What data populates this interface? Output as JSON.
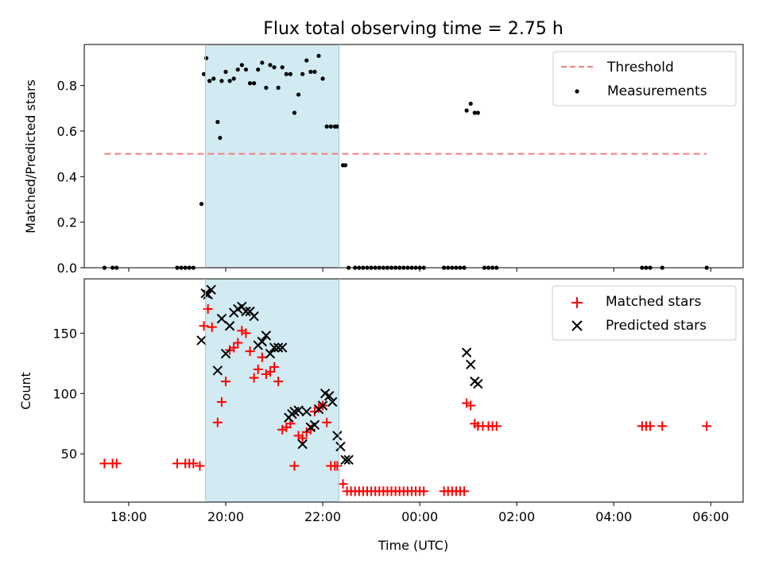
{
  "chart_data": [
    {
      "type": "scatter",
      "title": "Flux total observing time = 2.75 h",
      "ylabel": "Matched/Predicted stars",
      "xlabel": "",
      "xlim": [
        "17:05",
        "06:40"
      ],
      "ylim": [
        0,
        0.98
      ],
      "yticks": [
        "0.0",
        "0.2",
        "0.4",
        "0.6",
        "0.8"
      ],
      "xticks": [
        "18:00",
        "20:00",
        "22:00",
        "00:00",
        "02:00",
        "04:00",
        "06:00"
      ],
      "shaded_span": {
        "from": "19:35",
        "to": "22:20",
        "color": "#add8e6"
      },
      "grid": false,
      "legend_position": "upper right",
      "colors": {
        "threshold": "#f08080",
        "measurements": "#000000",
        "span": "#add8e6"
      },
      "series": [
        {
          "name": "Threshold",
          "style": "dashed-line",
          "x": [
            "17:30",
            "05:55"
          ],
          "y": [
            0.5,
            0.5
          ]
        },
        {
          "name": "Measurements",
          "style": "dots",
          "x": [
            "17:30",
            "17:40",
            "17:45",
            "19:00",
            "19:05",
            "19:10",
            "19:15",
            "19:20",
            "19:30",
            "19:33",
            "19:36",
            "19:40",
            "19:45",
            "19:50",
            "19:53",
            "19:55",
            "20:00",
            "20:05",
            "20:10",
            "20:15",
            "20:20",
            "20:25",
            "20:30",
            "20:35",
            "20:40",
            "20:45",
            "20:50",
            "20:55",
            "21:00",
            "21:05",
            "21:10",
            "21:15",
            "21:20",
            "21:25",
            "21:30",
            "21:35",
            "21:40",
            "21:45",
            "21:50",
            "21:55",
            "22:00",
            "22:05",
            "22:10",
            "22:15",
            "22:18",
            "22:25",
            "22:28",
            "22:32",
            "22:40",
            "22:45",
            "22:50",
            "22:55",
            "23:00",
            "23:05",
            "23:10",
            "23:15",
            "23:20",
            "23:25",
            "23:30",
            "23:35",
            "23:40",
            "23:45",
            "23:50",
            "23:55",
            "00:00",
            "00:05",
            "00:30",
            "00:35",
            "00:40",
            "00:45",
            "00:50",
            "00:55",
            "00:58",
            "01:03",
            "01:08",
            "01:12",
            "01:20",
            "01:25",
            "01:30",
            "01:35",
            "04:35",
            "04:40",
            "04:45",
            "05:00",
            "05:55"
          ],
          "y": [
            0,
            0,
            0,
            0,
            0,
            0,
            0,
            0,
            0.28,
            0.85,
            0.92,
            0.82,
            0.83,
            0.64,
            0.57,
            0.82,
            0.86,
            0.82,
            0.83,
            0.87,
            0.89,
            0.87,
            0.81,
            0.81,
            0.87,
            0.9,
            0.79,
            0.89,
            0.88,
            0.79,
            0.88,
            0.85,
            0.85,
            0.68,
            0.76,
            0.85,
            0.91,
            0.86,
            0.86,
            0.93,
            0.83,
            0.62,
            0.62,
            0.62,
            0.62,
            0.45,
            0.45,
            0,
            0,
            0,
            0,
            0,
            0,
            0,
            0,
            0,
            0,
            0,
            0,
            0,
            0,
            0,
            0,
            0,
            0,
            0,
            0,
            0,
            0,
            0,
            0,
            0,
            0.69,
            0.72,
            0.68,
            0.68,
            0,
            0,
            0,
            0,
            0,
            0,
            0,
            0,
            0
          ]
        }
      ]
    },
    {
      "type": "scatter",
      "title": "",
      "ylabel": "Count",
      "xlabel": "Time (UTC)",
      "xlim": [
        "17:05",
        "06:40"
      ],
      "ylim": [
        10,
        195
      ],
      "yticks": [
        "50",
        "100",
        "150"
      ],
      "xticks": [
        "18:00",
        "20:00",
        "22:00",
        "00:00",
        "02:00",
        "04:00",
        "06:00"
      ],
      "shaded_span": {
        "from": "19:35",
        "to": "22:20",
        "color": "#add8e6"
      },
      "grid": false,
      "legend_position": "upper right",
      "colors": {
        "matched": "#ff0000",
        "predicted": "#000000"
      },
      "series": [
        {
          "name": "Matched stars",
          "marker": "+",
          "x": [
            "17:30",
            "17:40",
            "17:45",
            "19:00",
            "19:10",
            "19:15",
            "19:20",
            "19:28",
            "19:33",
            "19:38",
            "19:43",
            "19:50",
            "19:55",
            "20:00",
            "20:05",
            "20:10",
            "20:15",
            "20:20",
            "20:25",
            "20:30",
            "20:35",
            "20:40",
            "20:45",
            "20:50",
            "20:55",
            "21:00",
            "21:05",
            "21:10",
            "21:15",
            "21:20",
            "21:25",
            "21:30",
            "21:35",
            "21:40",
            "21:45",
            "21:50",
            "21:55",
            "22:00",
            "22:05",
            "22:10",
            "22:15",
            "22:18",
            "22:25",
            "22:30",
            "22:35",
            "22:40",
            "22:45",
            "22:50",
            "22:55",
            "23:00",
            "23:05",
            "23:10",
            "23:15",
            "23:20",
            "23:25",
            "23:30",
            "23:35",
            "23:40",
            "23:45",
            "23:50",
            "23:55",
            "00:00",
            "00:05",
            "00:30",
            "00:35",
            "00:40",
            "00:45",
            "00:50",
            "00:55",
            "00:58",
            "01:03",
            "01:08",
            "01:12",
            "01:18",
            "01:25",
            "01:30",
            "01:35",
            "04:35",
            "04:40",
            "04:45",
            "05:00",
            "05:55"
          ],
          "y": [
            42,
            42,
            42,
            42,
            42,
            42,
            42,
            40,
            156,
            170,
            155,
            76,
            93,
            110,
            136,
            138,
            142,
            152,
            150,
            135,
            113,
            120,
            130,
            116,
            118,
            122,
            110,
            70,
            72,
            75,
            40,
            65,
            63,
            68,
            70,
            85,
            88,
            90,
            76,
            40,
            40,
            40,
            25,
            19,
            19,
            19,
            19,
            19,
            19,
            19,
            19,
            19,
            19,
            19,
            19,
            19,
            19,
            19,
            19,
            19,
            19,
            19,
            19,
            19,
            19,
            19,
            19,
            19,
            19,
            92,
            90,
            75,
            73,
            73,
            73,
            73,
            73,
            73,
            73,
            73,
            73,
            73
          ]
        },
        {
          "name": "Predicted stars",
          "marker": "x",
          "x": [
            "19:30",
            "19:35",
            "19:38",
            "19:42",
            "19:50",
            "19:55",
            "20:00",
            "20:05",
            "20:10",
            "20:15",
            "20:20",
            "20:25",
            "20:30",
            "20:35",
            "20:40",
            "20:45",
            "20:50",
            "20:55",
            "21:00",
            "21:05",
            "21:10",
            "21:18",
            "21:22",
            "21:25",
            "21:30",
            "21:35",
            "21:40",
            "21:45",
            "21:50",
            "21:55",
            "22:00",
            "22:03",
            "22:08",
            "22:12",
            "22:18",
            "22:22",
            "22:28",
            "22:32",
            "00:58",
            "01:03",
            "01:08",
            "01:12"
          ],
          "y": [
            144,
            183,
            182,
            186,
            119,
            162,
            133,
            156,
            167,
            170,
            172,
            168,
            168,
            164,
            140,
            143,
            148,
            133,
            138,
            138,
            138,
            80,
            83,
            85,
            86,
            58,
            85,
            72,
            74,
            87,
            90,
            100,
            98,
            93,
            65,
            56,
            45,
            45,
            134,
            124,
            110,
            108
          ]
        }
      ]
    }
  ]
}
